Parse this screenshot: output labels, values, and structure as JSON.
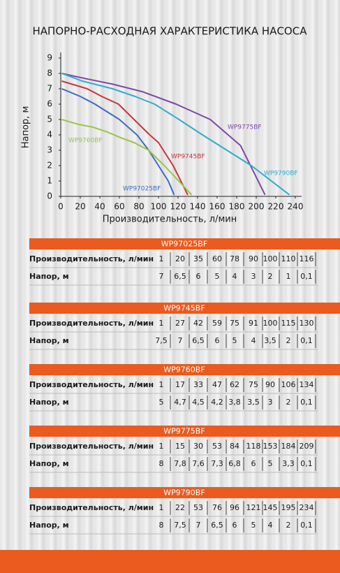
{
  "chart_data": {
    "type": "line",
    "title": "НАПОРНО-РАСХОДНАЯ ХАРАКТЕРИСТИКА НАСОСА",
    "x_label": "Производительность, л/мин",
    "y_label": "Напор, м",
    "xlim": [
      0,
      240
    ],
    "ylim": [
      0,
      9
    ],
    "xticks": [
      0,
      20,
      40,
      60,
      80,
      100,
      120,
      140,
      160,
      180,
      200,
      220,
      240
    ],
    "yticks": [
      0,
      1,
      2,
      3,
      4,
      5,
      6,
      7,
      8,
      9
    ],
    "series": [
      {
        "name": "WP97025BF",
        "color": "#3a6cc6",
        "x": [
          1,
          20,
          35,
          60,
          78,
          90,
          100,
          110,
          116
        ],
        "values": [
          7,
          6.5,
          6,
          5,
          4,
          3,
          2,
          1,
          0.1
        ]
      },
      {
        "name": "WP9745BF",
        "color": "#c9353a",
        "x": [
          1,
          27,
          42,
          59,
          75,
          91,
          100,
          115,
          130
        ],
        "values": [
          7.5,
          7,
          6.5,
          6,
          5,
          4,
          3.5,
          2,
          0.1
        ]
      },
      {
        "name": "WP9760BF",
        "color": "#9cc44c",
        "x": [
          1,
          17,
          33,
          47,
          62,
          75,
          90,
          106,
          134
        ],
        "values": [
          5,
          4.7,
          4.5,
          4.2,
          3.8,
          3.5,
          3,
          2,
          0.1
        ]
      },
      {
        "name": "WP9775BF",
        "color": "#7b48a8",
        "x": [
          1,
          15,
          30,
          53,
          84,
          118,
          153,
          184,
          209
        ],
        "values": [
          8,
          7.8,
          7.6,
          7.3,
          6.8,
          6,
          5,
          3.3,
          0.1
        ]
      },
      {
        "name": "WP9790BF",
        "color": "#2eadcb",
        "x": [
          1,
          22,
          53,
          76,
          96,
          121,
          145,
          195,
          234
        ],
        "values": [
          8,
          7.5,
          7,
          6.5,
          6,
          5,
          4,
          2,
          0.1
        ]
      }
    ]
  },
  "tables": [
    {
      "title": "WP97025BF",
      "rows": [
        [
          "Производительность, л/мин",
          "1",
          "20",
          "35",
          "60",
          "78",
          "90",
          "100",
          "110",
          "116"
        ],
        [
          "Напор, м",
          "7",
          "6,5",
          "6",
          "5",
          "4",
          "3",
          "2",
          "1",
          "0,1"
        ]
      ]
    },
    {
      "title": "WP9745BF",
      "rows": [
        [
          "Производительность, л/мин",
          "1",
          "27",
          "42",
          "59",
          "75",
          "91",
          "100",
          "115",
          "130"
        ],
        [
          "Напор, м",
          "7,5",
          "7",
          "6,5",
          "6",
          "5",
          "4",
          "3,5",
          "2",
          "0,1"
        ]
      ]
    },
    {
      "title": "WP9760BF",
      "rows": [
        [
          "Производительность, л/мин",
          "1",
          "17",
          "33",
          "47",
          "62",
          "75",
          "90",
          "106",
          "134"
        ],
        [
          "Напор, м",
          "5",
          "4,7",
          "4,5",
          "4,2",
          "3,8",
          "3,5",
          "3",
          "2",
          "0,1"
        ]
      ]
    },
    {
      "title": "WP9775BF",
      "rows": [
        [
          "Производительность, л/мин",
          "1",
          "15",
          "30",
          "53",
          "84",
          "118",
          "153",
          "184",
          "209"
        ],
        [
          "Напор, м",
          "8",
          "7,8",
          "7,6",
          "7,3",
          "6,8",
          "6",
          "5",
          "3,3",
          "0,1"
        ]
      ]
    },
    {
      "title": "WP9790BF",
      "rows": [
        [
          "Производительность, л/мин",
          "1",
          "22",
          "53",
          "76",
          "96",
          "121",
          "145",
          "195",
          "234"
        ],
        [
          "Напор, м",
          "8",
          "7,5",
          "7",
          "6,5",
          "6",
          "5",
          "4",
          "2",
          "0,1"
        ]
      ]
    }
  ]
}
